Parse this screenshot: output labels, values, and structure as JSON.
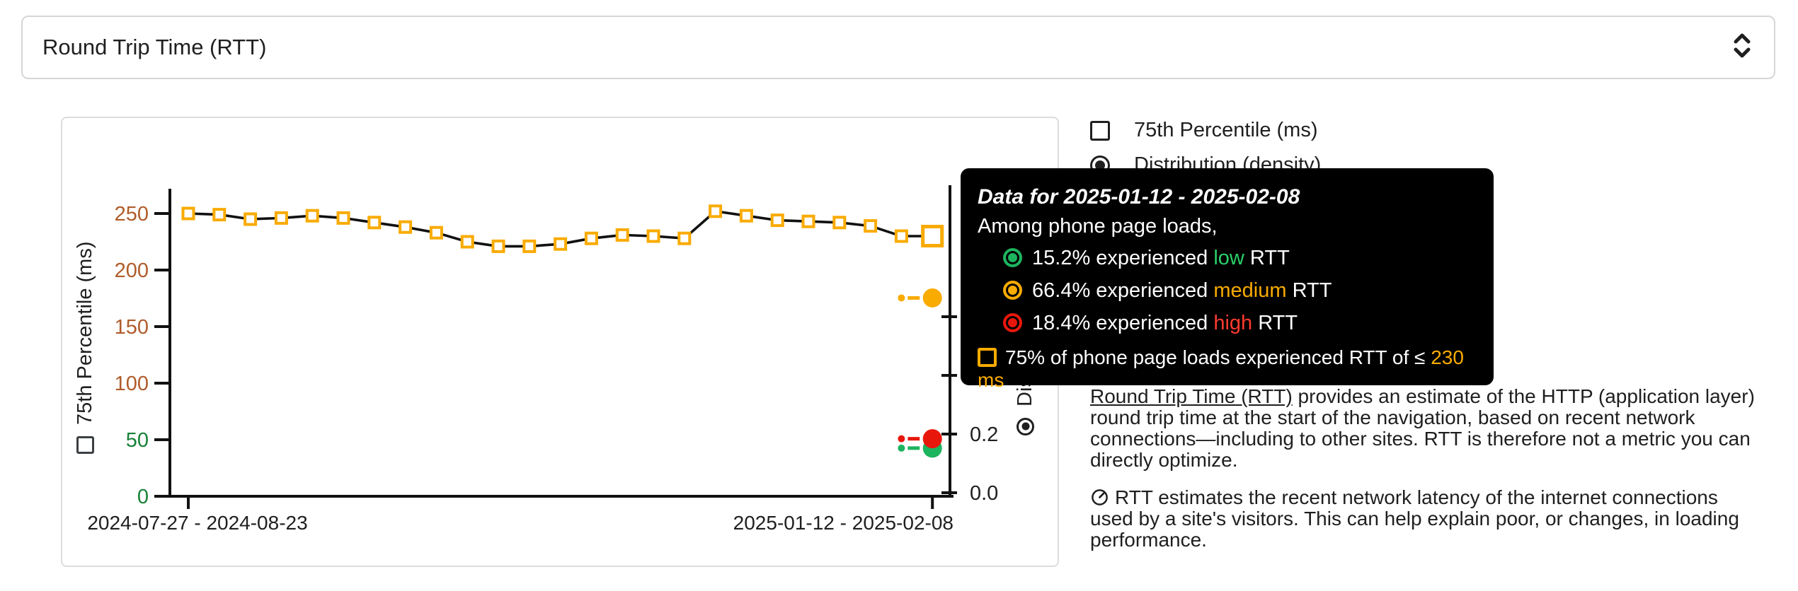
{
  "header": {
    "title": "Round Trip Time (RTT)"
  },
  "legend": {
    "percentile_label": "75th Percentile (ms)",
    "distribution_label": "Distribution (density)"
  },
  "chart_data": {
    "type": "line",
    "title": "",
    "xlabel": "",
    "left_axis": {
      "label": "75th Percentile (ms)",
      "ticks": [
        0,
        50,
        100,
        150,
        200,
        250
      ],
      "low_tick_color": "#188038",
      "medium_tick_color": "#b05c2a",
      "ylim": [
        0,
        275
      ]
    },
    "right_axis": {
      "label": "Distribution (density)",
      "ticks": [
        0.0,
        0.2,
        0.4,
        0.6
      ],
      "visible_tick_labels": [
        "0.0",
        "0.2"
      ]
    },
    "x_tick_labels": [
      "2024-07-27 - 2024-08-23",
      "2025-01-12 - 2025-02-08"
    ],
    "num_points": 25,
    "series": [
      {
        "name": "75th Percentile (ms)",
        "marker": "open-square",
        "color": "#f9ab00",
        "line_color": "#111111",
        "values": [
          250,
          249,
          245,
          246,
          248,
          246,
          242,
          238,
          233,
          225,
          221,
          221,
          223,
          228,
          231,
          230,
          228,
          252,
          248,
          244,
          243,
          242,
          239,
          230,
          230
        ]
      }
    ],
    "selected_point": {
      "window": "2025-01-12 - 2025-02-08",
      "p75_ms": 230,
      "density": {
        "low": 0.152,
        "medium": 0.664,
        "high": 0.184
      },
      "density_colors": {
        "low": "#1db45f",
        "medium": "#f9ab00",
        "high": "#e8170c"
      }
    }
  },
  "tooltip": {
    "title": "Data for 2025-01-12 - 2025-02-08",
    "subtitle": "Among phone page loads,",
    "rows": [
      {
        "pct": "15.2% ",
        "verb": "experienced ",
        "level": "low",
        "suffix": " RTT"
      },
      {
        "pct": "66.4% ",
        "verb": "experienced ",
        "level": "medium",
        "suffix": " RTT"
      },
      {
        "pct": "18.4% ",
        "verb": "experienced ",
        "level": "high",
        "suffix": " RTT"
      }
    ],
    "threshold": {
      "prefix": "75% of phone page loads experienced RTT of ≤ ",
      "value": "230 ms"
    }
  },
  "description": {
    "link_text": "Round Trip Time (RTT)",
    "p1_rest": " provides an estimate of the HTTP (application layer) round trip time at the start of the navigation, based on recent network connections—including to other sites. RTT is therefore not a metric you can directly optimize.",
    "p2": "RTT estimates the recent network latency of the internet connections used by a site's visitors. This can help explain poor, or changes, in loading performance."
  }
}
